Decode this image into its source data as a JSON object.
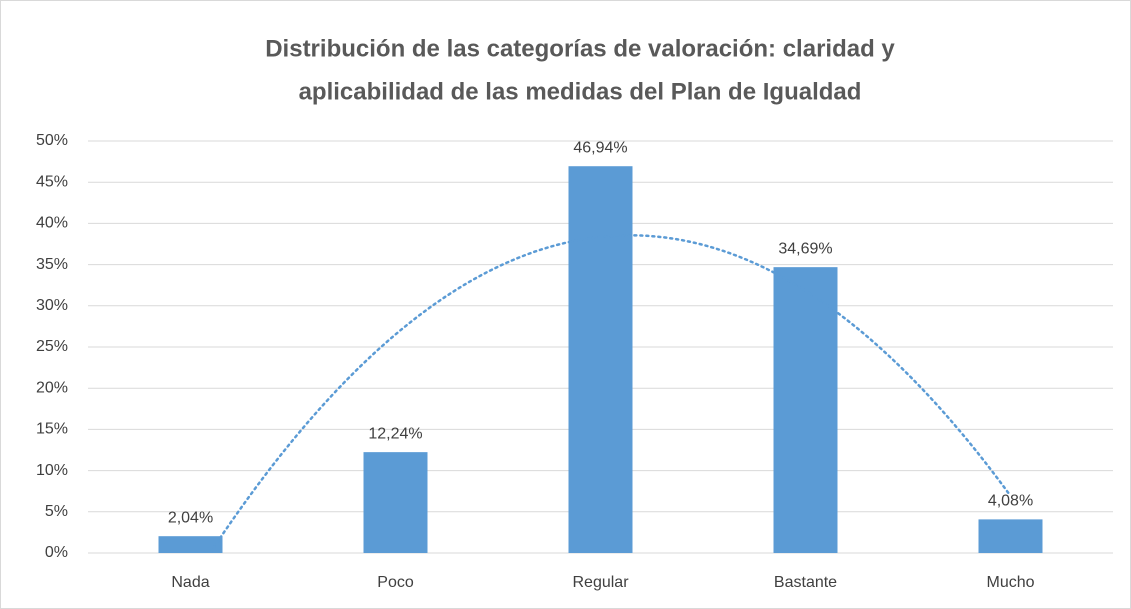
{
  "chart_data": {
    "type": "bar",
    "title": [
      "Distribución de las categorías de valoración: claridad y",
      "aplicabilidad de las medidas del Plan de Igualdad"
    ],
    "categories": [
      "Nada",
      "Poco",
      "Regular",
      "Bastante",
      "Mucho"
    ],
    "values": [
      2.04,
      12.24,
      46.94,
      34.69,
      4.08
    ],
    "value_labels": [
      "2,04%",
      "12,24%",
      "46,94%",
      "34,69%",
      "4,08%"
    ],
    "color": "#5b9bd5",
    "ylim": [
      0,
      50
    ],
    "yticks": [
      {
        "value": 0,
        "label": "0%"
      },
      {
        "value": 5,
        "label": "5%"
      },
      {
        "value": 10,
        "label": "10%"
      },
      {
        "value": 15,
        "label": "15%"
      },
      {
        "value": 20,
        "label": "20%"
      },
      {
        "value": 25,
        "label": "25%"
      },
      {
        "value": 30,
        "label": "30%"
      },
      {
        "value": 35,
        "label": "35%"
      },
      {
        "value": 40,
        "label": "40%"
      },
      {
        "value": 45,
        "label": "45%"
      },
      {
        "value": 50,
        "label": "50%"
      }
    ],
    "grid": true,
    "trendline": "polynomial"
  }
}
